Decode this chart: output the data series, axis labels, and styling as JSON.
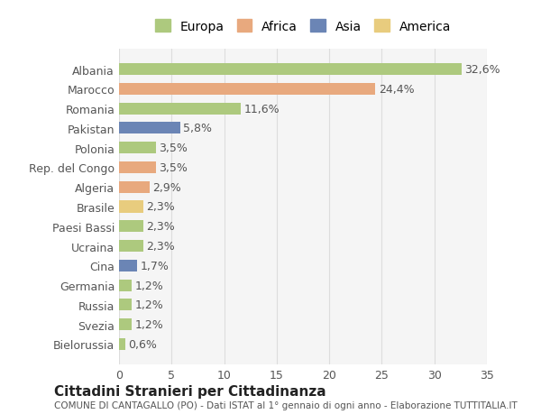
{
  "countries": [
    "Albania",
    "Marocco",
    "Romania",
    "Pakistan",
    "Polonia",
    "Rep. del Congo",
    "Algeria",
    "Brasile",
    "Paesi Bassi",
    "Ucraina",
    "Cina",
    "Germania",
    "Russia",
    "Svezia",
    "Bielorussia"
  ],
  "values": [
    32.6,
    24.4,
    11.6,
    5.8,
    3.5,
    3.5,
    2.9,
    2.3,
    2.3,
    2.3,
    1.7,
    1.2,
    1.2,
    1.2,
    0.6
  ],
  "labels": [
    "32,6%",
    "24,4%",
    "11,6%",
    "5,8%",
    "3,5%",
    "3,5%",
    "2,9%",
    "2,3%",
    "2,3%",
    "2,3%",
    "1,7%",
    "1,2%",
    "1,2%",
    "1,2%",
    "0,6%"
  ],
  "continents": [
    "Europa",
    "Africa",
    "Europa",
    "Asia",
    "Europa",
    "Africa",
    "Africa",
    "America",
    "Europa",
    "Europa",
    "Asia",
    "Europa",
    "Europa",
    "Europa",
    "Europa"
  ],
  "colors": {
    "Europa": "#adc97e",
    "Africa": "#e8a97e",
    "Asia": "#6b85b5",
    "America": "#e8cc7e"
  },
  "legend_order": [
    "Europa",
    "Africa",
    "Asia",
    "America"
  ],
  "legend_colors": [
    "#adc97e",
    "#e8a97e",
    "#6b85b5",
    "#e8cc7e"
  ],
  "xlim": [
    0,
    35
  ],
  "xticks": [
    0,
    5,
    10,
    15,
    20,
    25,
    30,
    35
  ],
  "bg_color": "#ffffff",
  "grid_color": "#dddddd",
  "title": "Cittadini Stranieri per Cittadinanza",
  "subtitle": "COMUNE DI CANTAGALLO (PO) - Dati ISTAT al 1° gennaio di ogni anno - Elaborazione TUTTITALIA.IT",
  "bar_height": 0.6,
  "label_fontsize": 9,
  "tick_fontsize": 9
}
